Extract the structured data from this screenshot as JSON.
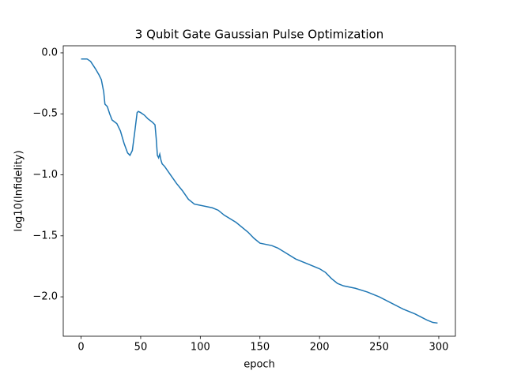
{
  "chart_data": {
    "type": "line",
    "title": "3 Qubit Gate Gaussian Pulse Optimization",
    "x_label": "epoch",
    "y_label": "log10(Infidelity)",
    "x": [
      0,
      5,
      8,
      12,
      15,
      17,
      19,
      20,
      22,
      24,
      26,
      30,
      33,
      36,
      39,
      41,
      43,
      45,
      47,
      48,
      50,
      53,
      56,
      60,
      62,
      63,
      64,
      65,
      66,
      67,
      68,
      70,
      75,
      80,
      85,
      90,
      95,
      100,
      110,
      115,
      120,
      130,
      140,
      145,
      150,
      160,
      165,
      170,
      180,
      190,
      200,
      205,
      210,
      215,
      220,
      230,
      240,
      250,
      260,
      270,
      280,
      290,
      295,
      299
    ],
    "series": [
      {
        "name": "log10(Infidelity)",
        "color": "#1f77b4",
        "values": [
          -0.05,
          -0.05,
          -0.07,
          -0.13,
          -0.18,
          -0.22,
          -0.32,
          -0.42,
          -0.44,
          -0.5,
          -0.55,
          -0.58,
          -0.64,
          -0.74,
          -0.82,
          -0.84,
          -0.8,
          -0.65,
          -0.49,
          -0.48,
          -0.49,
          -0.51,
          -0.54,
          -0.57,
          -0.59,
          -0.7,
          -0.84,
          -0.86,
          -0.83,
          -0.88,
          -0.91,
          -0.93,
          -1.0,
          -1.07,
          -1.13,
          -1.2,
          -1.24,
          -1.25,
          -1.27,
          -1.29,
          -1.33,
          -1.39,
          -1.47,
          -1.52,
          -1.56,
          -1.58,
          -1.6,
          -1.63,
          -1.69,
          -1.73,
          -1.77,
          -1.8,
          -1.85,
          -1.89,
          -1.91,
          -1.93,
          -1.96,
          -2.0,
          -2.05,
          -2.1,
          -2.14,
          -2.19,
          -2.21,
          -2.215
        ]
      }
    ],
    "xlim": [
      -14.95,
      313.95
    ],
    "ylim": [
      -2.323,
      0.058
    ],
    "xticks": [
      0,
      50,
      100,
      150,
      200,
      250,
      300
    ],
    "yticks": [
      {
        "value": 0,
        "label": "0.0"
      },
      {
        "value": -0.5,
        "label": "−0.5"
      },
      {
        "value": -1,
        "label": "−1.0"
      },
      {
        "value": -1.5,
        "label": "−1.5"
      },
      {
        "value": -2,
        "label": "−2.0"
      }
    ]
  }
}
